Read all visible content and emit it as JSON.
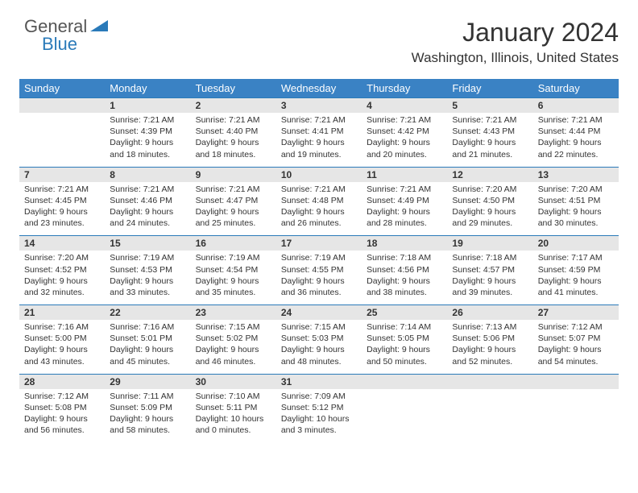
{
  "logo": {
    "text_general": "General",
    "text_blue": "Blue"
  },
  "header": {
    "title": "January 2024",
    "location": "Washington, Illinois, United States"
  },
  "calendar": {
    "type": "table",
    "header_bg": "#3a82c4",
    "header_text_color": "#ffffff",
    "daynum_bg": "#e6e6e6",
    "border_color": "#2a7ab9",
    "text_color": "#333333",
    "header_fontsize": 13,
    "daynum_fontsize": 12,
    "detail_fontsize": 10.5,
    "day_headers": [
      "Sunday",
      "Monday",
      "Tuesday",
      "Wednesday",
      "Thursday",
      "Friday",
      "Saturday"
    ],
    "weeks": [
      [
        null,
        {
          "n": "1",
          "sr": "Sunrise: 7:21 AM",
          "ss": "Sunset: 4:39 PM",
          "d1": "Daylight: 9 hours",
          "d2": "and 18 minutes."
        },
        {
          "n": "2",
          "sr": "Sunrise: 7:21 AM",
          "ss": "Sunset: 4:40 PM",
          "d1": "Daylight: 9 hours",
          "d2": "and 18 minutes."
        },
        {
          "n": "3",
          "sr": "Sunrise: 7:21 AM",
          "ss": "Sunset: 4:41 PM",
          "d1": "Daylight: 9 hours",
          "d2": "and 19 minutes."
        },
        {
          "n": "4",
          "sr": "Sunrise: 7:21 AM",
          "ss": "Sunset: 4:42 PM",
          "d1": "Daylight: 9 hours",
          "d2": "and 20 minutes."
        },
        {
          "n": "5",
          "sr": "Sunrise: 7:21 AM",
          "ss": "Sunset: 4:43 PM",
          "d1": "Daylight: 9 hours",
          "d2": "and 21 minutes."
        },
        {
          "n": "6",
          "sr": "Sunrise: 7:21 AM",
          "ss": "Sunset: 4:44 PM",
          "d1": "Daylight: 9 hours",
          "d2": "and 22 minutes."
        }
      ],
      [
        {
          "n": "7",
          "sr": "Sunrise: 7:21 AM",
          "ss": "Sunset: 4:45 PM",
          "d1": "Daylight: 9 hours",
          "d2": "and 23 minutes."
        },
        {
          "n": "8",
          "sr": "Sunrise: 7:21 AM",
          "ss": "Sunset: 4:46 PM",
          "d1": "Daylight: 9 hours",
          "d2": "and 24 minutes."
        },
        {
          "n": "9",
          "sr": "Sunrise: 7:21 AM",
          "ss": "Sunset: 4:47 PM",
          "d1": "Daylight: 9 hours",
          "d2": "and 25 minutes."
        },
        {
          "n": "10",
          "sr": "Sunrise: 7:21 AM",
          "ss": "Sunset: 4:48 PM",
          "d1": "Daylight: 9 hours",
          "d2": "and 26 minutes."
        },
        {
          "n": "11",
          "sr": "Sunrise: 7:21 AM",
          "ss": "Sunset: 4:49 PM",
          "d1": "Daylight: 9 hours",
          "d2": "and 28 minutes."
        },
        {
          "n": "12",
          "sr": "Sunrise: 7:20 AM",
          "ss": "Sunset: 4:50 PM",
          "d1": "Daylight: 9 hours",
          "d2": "and 29 minutes."
        },
        {
          "n": "13",
          "sr": "Sunrise: 7:20 AM",
          "ss": "Sunset: 4:51 PM",
          "d1": "Daylight: 9 hours",
          "d2": "and 30 minutes."
        }
      ],
      [
        {
          "n": "14",
          "sr": "Sunrise: 7:20 AM",
          "ss": "Sunset: 4:52 PM",
          "d1": "Daylight: 9 hours",
          "d2": "and 32 minutes."
        },
        {
          "n": "15",
          "sr": "Sunrise: 7:19 AM",
          "ss": "Sunset: 4:53 PM",
          "d1": "Daylight: 9 hours",
          "d2": "and 33 minutes."
        },
        {
          "n": "16",
          "sr": "Sunrise: 7:19 AM",
          "ss": "Sunset: 4:54 PM",
          "d1": "Daylight: 9 hours",
          "d2": "and 35 minutes."
        },
        {
          "n": "17",
          "sr": "Sunrise: 7:19 AM",
          "ss": "Sunset: 4:55 PM",
          "d1": "Daylight: 9 hours",
          "d2": "and 36 minutes."
        },
        {
          "n": "18",
          "sr": "Sunrise: 7:18 AM",
          "ss": "Sunset: 4:56 PM",
          "d1": "Daylight: 9 hours",
          "d2": "and 38 minutes."
        },
        {
          "n": "19",
          "sr": "Sunrise: 7:18 AM",
          "ss": "Sunset: 4:57 PM",
          "d1": "Daylight: 9 hours",
          "d2": "and 39 minutes."
        },
        {
          "n": "20",
          "sr": "Sunrise: 7:17 AM",
          "ss": "Sunset: 4:59 PM",
          "d1": "Daylight: 9 hours",
          "d2": "and 41 minutes."
        }
      ],
      [
        {
          "n": "21",
          "sr": "Sunrise: 7:16 AM",
          "ss": "Sunset: 5:00 PM",
          "d1": "Daylight: 9 hours",
          "d2": "and 43 minutes."
        },
        {
          "n": "22",
          "sr": "Sunrise: 7:16 AM",
          "ss": "Sunset: 5:01 PM",
          "d1": "Daylight: 9 hours",
          "d2": "and 45 minutes."
        },
        {
          "n": "23",
          "sr": "Sunrise: 7:15 AM",
          "ss": "Sunset: 5:02 PM",
          "d1": "Daylight: 9 hours",
          "d2": "and 46 minutes."
        },
        {
          "n": "24",
          "sr": "Sunrise: 7:15 AM",
          "ss": "Sunset: 5:03 PM",
          "d1": "Daylight: 9 hours",
          "d2": "and 48 minutes."
        },
        {
          "n": "25",
          "sr": "Sunrise: 7:14 AM",
          "ss": "Sunset: 5:05 PM",
          "d1": "Daylight: 9 hours",
          "d2": "and 50 minutes."
        },
        {
          "n": "26",
          "sr": "Sunrise: 7:13 AM",
          "ss": "Sunset: 5:06 PM",
          "d1": "Daylight: 9 hours",
          "d2": "and 52 minutes."
        },
        {
          "n": "27",
          "sr": "Sunrise: 7:12 AM",
          "ss": "Sunset: 5:07 PM",
          "d1": "Daylight: 9 hours",
          "d2": "and 54 minutes."
        }
      ],
      [
        {
          "n": "28",
          "sr": "Sunrise: 7:12 AM",
          "ss": "Sunset: 5:08 PM",
          "d1": "Daylight: 9 hours",
          "d2": "and 56 minutes."
        },
        {
          "n": "29",
          "sr": "Sunrise: 7:11 AM",
          "ss": "Sunset: 5:09 PM",
          "d1": "Daylight: 9 hours",
          "d2": "and 58 minutes."
        },
        {
          "n": "30",
          "sr": "Sunrise: 7:10 AM",
          "ss": "Sunset: 5:11 PM",
          "d1": "Daylight: 10 hours",
          "d2": "and 0 minutes."
        },
        {
          "n": "31",
          "sr": "Sunrise: 7:09 AM",
          "ss": "Sunset: 5:12 PM",
          "d1": "Daylight: 10 hours",
          "d2": "and 3 minutes."
        },
        null,
        null,
        null
      ]
    ]
  }
}
